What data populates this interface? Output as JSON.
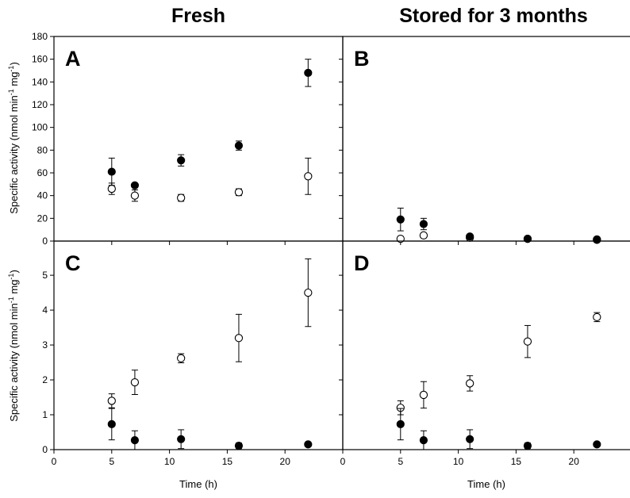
{
  "column_titles": [
    "Fresh",
    "Stored for 3 months"
  ],
  "x_axis_title": "Time (h)",
  "y_axis_title_main": "Specific activity (nmol min",
  "y_axis_title_sup1": "-1",
  "y_axis_title_mid": " mg",
  "y_axis_title_sup2": "-1",
  "y_axis_title_end": ")",
  "chart_data": [
    {
      "panel": "A",
      "type": "scatter",
      "xlim": [
        0,
        25
      ],
      "ylim": [
        0,
        180
      ],
      "x_ticks": [
        0,
        5,
        10,
        15,
        20
      ],
      "y_ticks": [
        0,
        20,
        40,
        60,
        80,
        100,
        120,
        140,
        160,
        180
      ],
      "series": [
        {
          "marker": "filled",
          "x": [
            5,
            7,
            11,
            16,
            22
          ],
          "y": [
            61,
            49,
            71,
            84,
            148
          ],
          "err": [
            12,
            0,
            5,
            4,
            12
          ]
        },
        {
          "marker": "open",
          "x": [
            5,
            7,
            11,
            16,
            22
          ],
          "y": [
            46,
            40,
            38,
            43,
            57
          ],
          "err": [
            5,
            5,
            3,
            3,
            16
          ]
        }
      ]
    },
    {
      "panel": "B",
      "type": "scatter",
      "xlim": [
        0,
        25
      ],
      "ylim": [
        0,
        180
      ],
      "x_ticks": [
        0,
        5,
        10,
        15,
        20
      ],
      "y_ticks": [
        0,
        20,
        40,
        60,
        80,
        100,
        120,
        140,
        160,
        180
      ],
      "series": [
        {
          "marker": "filled",
          "x": [
            5,
            7,
            11,
            16,
            22
          ],
          "y": [
            19,
            15,
            4,
            2,
            1
          ],
          "err": [
            10,
            5,
            1,
            0.5,
            0
          ]
        },
        {
          "marker": "open",
          "x": [
            5,
            7,
            11,
            16,
            22
          ],
          "y": [
            2,
            5,
            3,
            2,
            1.5
          ],
          "err": [
            0,
            2,
            1,
            1,
            0
          ]
        }
      ]
    },
    {
      "panel": "C",
      "type": "scatter",
      "xlim": [
        0,
        25
      ],
      "ylim": [
        0,
        6
      ],
      "x_ticks": [
        0,
        5,
        10,
        15,
        20
      ],
      "y_ticks": [
        0,
        1,
        2,
        3,
        4,
        5
      ],
      "series": [
        {
          "marker": "filled",
          "x": [
            5,
            7,
            11,
            16,
            22
          ],
          "y": [
            0.73,
            0.27,
            0.3,
            0.11,
            0.15
          ],
          "err": [
            0.45,
            0.27,
            0.27,
            0.08,
            0.05
          ]
        },
        {
          "marker": "open",
          "x": [
            5,
            7,
            11,
            16,
            22
          ],
          "y": [
            1.4,
            1.93,
            2.62,
            3.2,
            4.5
          ],
          "err": [
            0.2,
            0.35,
            0.13,
            0.68,
            0.97
          ]
        }
      ]
    },
    {
      "panel": "D",
      "type": "scatter",
      "xlim": [
        0,
        25
      ],
      "ylim": [
        0,
        6
      ],
      "x_ticks": [
        0,
        5,
        10,
        15,
        20
      ],
      "y_ticks": [
        0,
        1,
        2,
        3,
        4,
        5
      ],
      "series": [
        {
          "marker": "filled",
          "x": [
            5,
            7,
            11,
            16,
            22
          ],
          "y": [
            0.73,
            0.27,
            0.3,
            0.11,
            0.15
          ],
          "err": [
            0.45,
            0.27,
            0.27,
            0.08,
            0.05
          ]
        },
        {
          "marker": "open",
          "x": [
            5,
            7,
            11,
            16,
            22
          ],
          "y": [
            1.2,
            1.57,
            1.9,
            3.1,
            3.8
          ],
          "err": [
            0.2,
            0.38,
            0.22,
            0.46,
            0.13
          ]
        }
      ]
    }
  ]
}
